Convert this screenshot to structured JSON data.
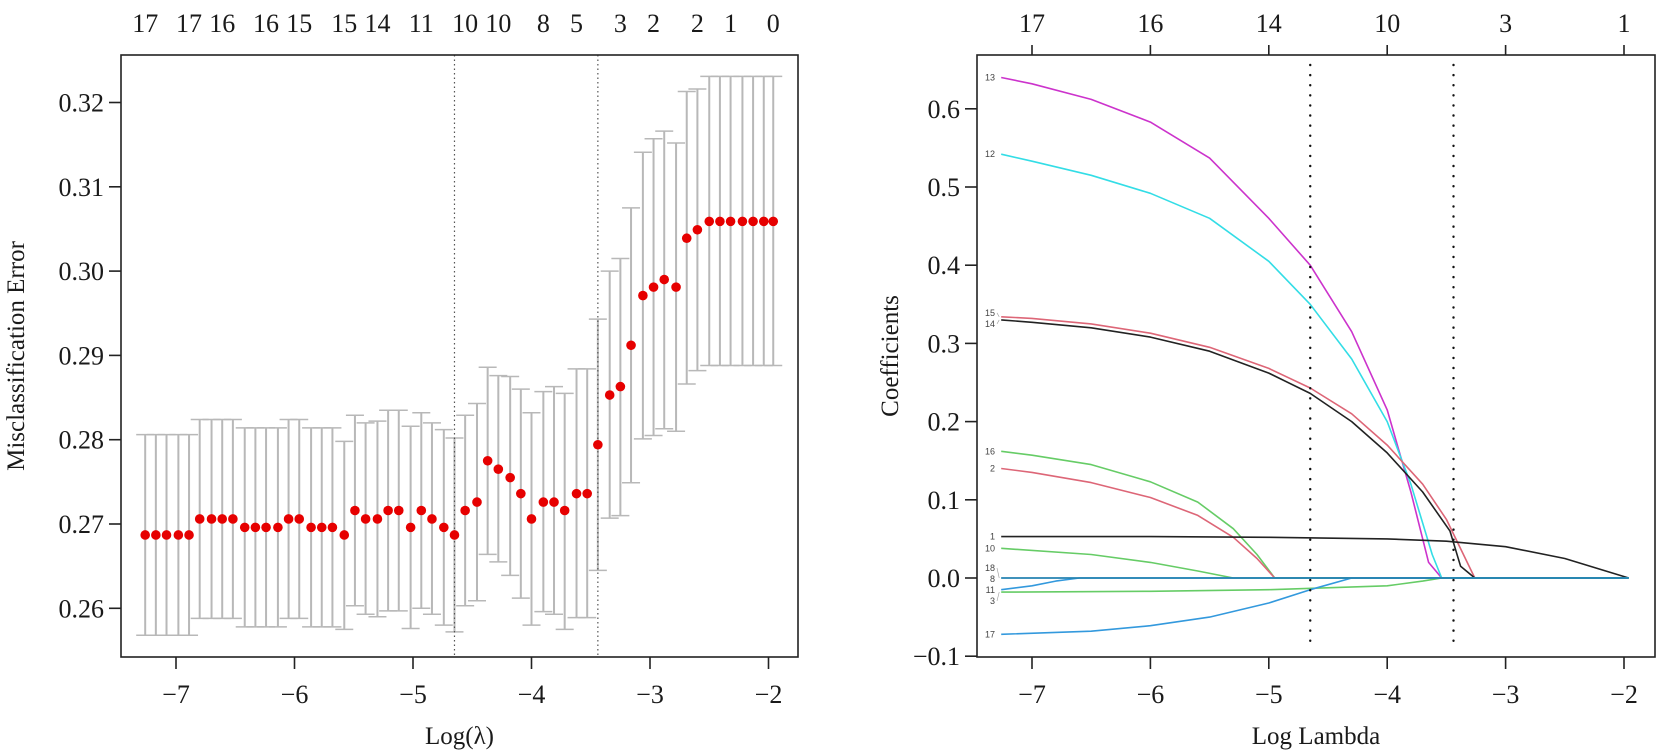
{
  "chart_data": [
    {
      "type": "scatter",
      "subtype": "cv-errorbar",
      "title": "",
      "xlabel": "Log(λ)",
      "ylabel": "Misclassification Error",
      "xlim": [
        -7.4,
        -1.75
      ],
      "ylim": [
        0.2545,
        0.3251
      ],
      "x_ticks": [
        -7,
        -6,
        -5,
        -4,
        -3,
        -2
      ],
      "x_tick_labels": [
        "−7",
        "−6",
        "−5",
        "−4",
        "−3",
        "−2"
      ],
      "y_ticks": [
        0.26,
        0.27,
        0.28,
        0.29,
        0.3,
        0.31,
        0.32
      ],
      "y_tick_labels": [
        "0.26",
        "0.27",
        "0.28",
        "0.29",
        "0.30",
        "0.31",
        "0.32"
      ],
      "top_axis_labels": [
        "17",
        "17",
        "16",
        "16",
        "15",
        "15",
        "14",
        "11",
        "10",
        "10",
        "8",
        "5",
        "3",
        "2",
        "2",
        "1",
        "0"
      ],
      "vlines": [
        -4.65,
        -3.44
      ],
      "point_color": "#e60000",
      "errorbar_color": "#b8b8b8",
      "grid": false,
      "x": [
        -7.26,
        -7.17,
        -7.08,
        -6.98,
        -6.89,
        -6.8,
        -6.7,
        -6.61,
        -6.52,
        -6.42,
        -6.33,
        -6.24,
        -6.14,
        -6.05,
        -5.96,
        -5.86,
        -5.77,
        -5.68,
        -5.58,
        -5.49,
        -5.4,
        -5.3,
        -5.21,
        -5.12,
        -5.02,
        -4.93,
        -4.84,
        -4.74,
        -4.65,
        -4.56,
        -4.46,
        -4.37,
        -4.28,
        -4.18,
        -4.09,
        -4.0,
        -3.9,
        -3.81,
        -3.72,
        -3.62,
        -3.53,
        -3.44,
        -3.34,
        -3.25,
        -3.16,
        -3.06,
        -2.97,
        -2.88,
        -2.78,
        -2.69,
        -2.6,
        -2.5,
        -2.41,
        -2.32,
        -2.22,
        -2.13,
        -2.04,
        -1.96
      ],
      "y": [
        0.2687,
        0.2687,
        0.2687,
        0.2687,
        0.2687,
        0.2706,
        0.2706,
        0.2706,
        0.2706,
        0.2696,
        0.2696,
        0.2696,
        0.2696,
        0.2706,
        0.2706,
        0.2696,
        0.2696,
        0.2696,
        0.2687,
        0.2716,
        0.2706,
        0.2706,
        0.2716,
        0.2716,
        0.2696,
        0.2716,
        0.2706,
        0.2696,
        0.2687,
        0.2716,
        0.2726,
        0.2775,
        0.2765,
        0.2755,
        0.2736,
        0.2706,
        0.2726,
        0.2726,
        0.2716,
        0.2736,
        0.2736,
        0.2794,
        0.2853,
        0.2863,
        0.2912,
        0.2971,
        0.2981,
        0.299,
        0.2981,
        0.3039,
        0.3049,
        0.3059,
        0.3059,
        0.3059,
        0.3059,
        0.3059,
        0.3059,
        0.3059
      ],
      "y_lower": [
        0.2568,
        0.2568,
        0.2568,
        0.2568,
        0.2568,
        0.2588,
        0.2588,
        0.2588,
        0.2588,
        0.2578,
        0.2578,
        0.2578,
        0.2578,
        0.2588,
        0.2588,
        0.2578,
        0.2578,
        0.2578,
        0.2575,
        0.2603,
        0.2593,
        0.259,
        0.2597,
        0.2597,
        0.2576,
        0.26,
        0.2593,
        0.258,
        0.2572,
        0.2603,
        0.2609,
        0.2664,
        0.2655,
        0.2639,
        0.2612,
        0.258,
        0.2596,
        0.2593,
        0.2575,
        0.2589,
        0.2589,
        0.2645,
        0.2707,
        0.271,
        0.2749,
        0.2801,
        0.2805,
        0.2813,
        0.281,
        0.2866,
        0.2882,
        0.2888,
        0.2888,
        0.2888,
        0.2888,
        0.2888,
        0.2888,
        0.2888
      ],
      "y_upper": [
        0.2806,
        0.2806,
        0.2806,
        0.2806,
        0.2806,
        0.2824,
        0.2824,
        0.2824,
        0.2824,
        0.2814,
        0.2814,
        0.2814,
        0.2814,
        0.2824,
        0.2824,
        0.2814,
        0.2814,
        0.2814,
        0.2798,
        0.2829,
        0.282,
        0.2822,
        0.2835,
        0.2835,
        0.2816,
        0.2832,
        0.282,
        0.2812,
        0.2802,
        0.2829,
        0.2843,
        0.2886,
        0.2876,
        0.2875,
        0.286,
        0.2832,
        0.2857,
        0.2863,
        0.2855,
        0.2884,
        0.2884,
        0.2943,
        0.3,
        0.3015,
        0.3075,
        0.3141,
        0.3157,
        0.3166,
        0.3152,
        0.3213,
        0.3216,
        0.3231,
        0.3231,
        0.3231,
        0.3231,
        0.3231,
        0.3231,
        0.3231
      ]
    },
    {
      "type": "line",
      "title": "",
      "xlabel": "Log Lambda",
      "ylabel": "Coefficients",
      "xlim": [
        -7.48,
        -1.73
      ],
      "ylim": [
        -0.101,
        0.655
      ],
      "x_ticks": [
        -7,
        -6,
        -5,
        -4,
        -3,
        -2
      ],
      "x_tick_labels": [
        "−7",
        "−6",
        "−5",
        "−4",
        "−3",
        "−2"
      ],
      "y_ticks": [
        -0.1,
        0.0,
        0.1,
        0.2,
        0.3,
        0.4,
        0.5,
        0.6
      ],
      "y_tick_labels": [
        "−0.1",
        "0.0",
        "0.1",
        "0.2",
        "0.3",
        "0.4",
        "0.5",
        "0.6"
      ],
      "top_axis_ticks": [
        -7,
        -6,
        -5,
        -4,
        -3,
        -2
      ],
      "top_axis_labels": [
        "17",
        "16",
        "14",
        "10",
        "3",
        "1"
      ],
      "vlines": [
        -4.65,
        -3.44
      ],
      "grid": false,
      "series": [
        {
          "name": "13",
          "color": "#cc33cc",
          "x": [
            -7.26,
            -7.0,
            -6.5,
            -6.0,
            -5.5,
            -5.0,
            -4.65,
            -4.3,
            -4.0,
            -3.8,
            -3.65,
            -3.54
          ],
          "y": [
            0.64,
            0.632,
            0.612,
            0.583,
            0.537,
            0.46,
            0.4,
            0.315,
            0.215,
            0.11,
            0.02,
            0.0
          ]
        },
        {
          "name": "12",
          "color": "#33dde6",
          "x": [
            -7.26,
            -7.0,
            -6.5,
            -6.0,
            -5.5,
            -5.0,
            -4.65,
            -4.3,
            -4.0,
            -3.8,
            -3.62,
            -3.54
          ],
          "y": [
            0.542,
            0.533,
            0.515,
            0.492,
            0.46,
            0.405,
            0.35,
            0.28,
            0.2,
            0.12,
            0.03,
            0.0
          ]
        },
        {
          "name": "15",
          "color": "#dd6677",
          "x": [
            -7.26,
            -7.0,
            -6.5,
            -6.0,
            -5.5,
            -5.0,
            -4.65,
            -4.3,
            -4.0,
            -3.7,
            -3.5,
            -3.26
          ],
          "y": [
            0.334,
            0.332,
            0.325,
            0.313,
            0.295,
            0.268,
            0.243,
            0.21,
            0.17,
            0.12,
            0.075,
            0.0
          ]
        },
        {
          "name": "14",
          "color": "#222222",
          "x": [
            -7.26,
            -7.0,
            -6.5,
            -6.0,
            -5.5,
            -5.0,
            -4.65,
            -4.3,
            -4.0,
            -3.7,
            -3.47,
            -3.38,
            -3.26
          ],
          "y": [
            0.33,
            0.327,
            0.32,
            0.308,
            0.29,
            0.262,
            0.236,
            0.2,
            0.16,
            0.11,
            0.06,
            0.015,
            0.0
          ]
        },
        {
          "name": "16",
          "color": "#66cc66",
          "x": [
            -7.26,
            -7.0,
            -6.5,
            -6.0,
            -5.6,
            -5.3,
            -5.1,
            -4.95
          ],
          "y": [
            0.162,
            0.157,
            0.145,
            0.123,
            0.097,
            0.063,
            0.03,
            0.0
          ]
        },
        {
          "name": "2",
          "color": "#dd6677",
          "x": [
            -7.26,
            -7.0,
            -6.5,
            -6.0,
            -5.6,
            -5.3,
            -5.1,
            -4.95
          ],
          "y": [
            0.14,
            0.135,
            0.122,
            0.103,
            0.08,
            0.052,
            0.025,
            0.0
          ]
        },
        {
          "name": "1",
          "color": "#222222",
          "x": [
            -7.26,
            -6.0,
            -5.0,
            -4.0,
            -3.5,
            -3.0,
            -2.5,
            -1.96
          ],
          "y": [
            0.053,
            0.053,
            0.052,
            0.05,
            0.047,
            0.04,
            0.025,
            0.0
          ]
        },
        {
          "name": "10",
          "color": "#66cc66",
          "x": [
            -7.26,
            -6.5,
            -6.0,
            -5.6,
            -5.3
          ],
          "y": [
            0.038,
            0.03,
            0.02,
            0.009,
            0.0
          ]
        },
        {
          "name": "11",
          "color": "#3399dd",
          "x": [
            -7.26,
            -7.0,
            -6.8,
            -6.6
          ],
          "y": [
            -0.015,
            -0.01,
            -0.004,
            0.0
          ]
        },
        {
          "name": "3",
          "color": "#66cc66",
          "x": [
            -7.26,
            -6.0,
            -5.0,
            -4.0,
            -3.7,
            -3.54
          ],
          "y": [
            -0.018,
            -0.017,
            -0.015,
            -0.01,
            -0.004,
            0.0
          ]
        },
        {
          "name": "17",
          "color": "#3399dd",
          "x": [
            -7.26,
            -6.5,
            -6.0,
            -5.5,
            -5.0,
            -4.65,
            -4.3
          ],
          "y": [
            -0.072,
            -0.068,
            -0.061,
            -0.05,
            -0.032,
            -0.015,
            0.0
          ]
        },
        {
          "name": "18",
          "color": "#33ccdd",
          "x": [
            -7.26,
            -1.96
          ],
          "y": [
            0.0,
            0.0
          ]
        },
        {
          "name": "8",
          "color": "#2277aa",
          "x": [
            -7.26,
            -1.96
          ],
          "y": [
            0.0,
            0.0
          ]
        }
      ]
    }
  ]
}
